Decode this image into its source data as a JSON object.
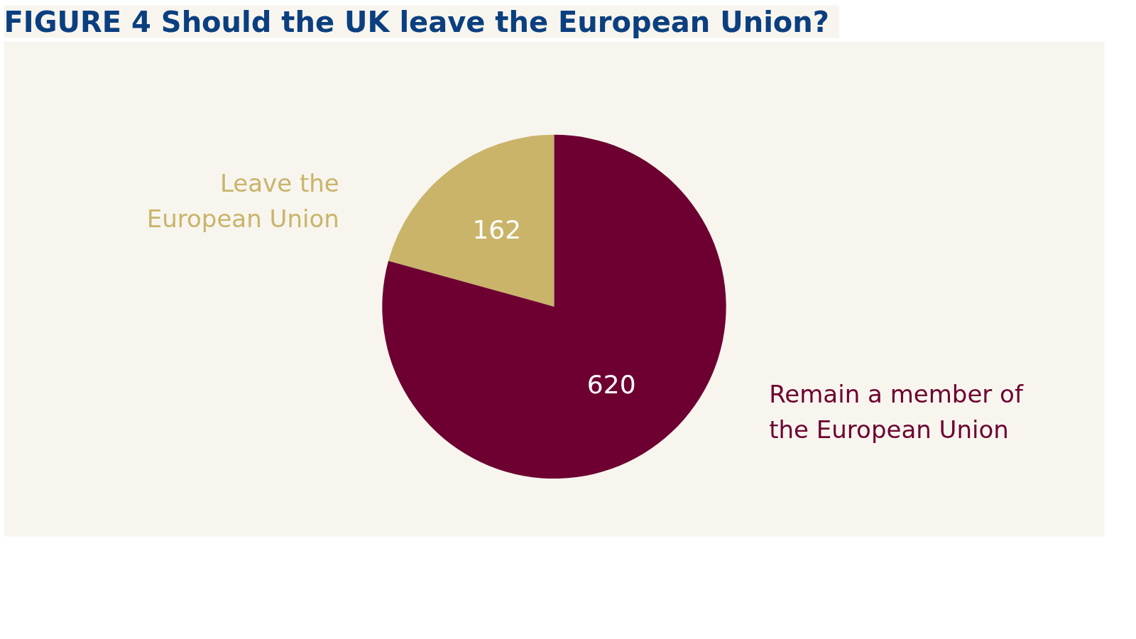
{
  "chart_data": {
    "type": "pie",
    "title": "FIGURE 4  Should the UK leave the European Union?",
    "categories": [
      "Leave the European Union",
      "Remain a member of the European Union"
    ],
    "values": [
      162,
      620
    ],
    "colors": [
      "#c9b46a",
      "#6d0030"
    ],
    "data_labels": true
  }
}
